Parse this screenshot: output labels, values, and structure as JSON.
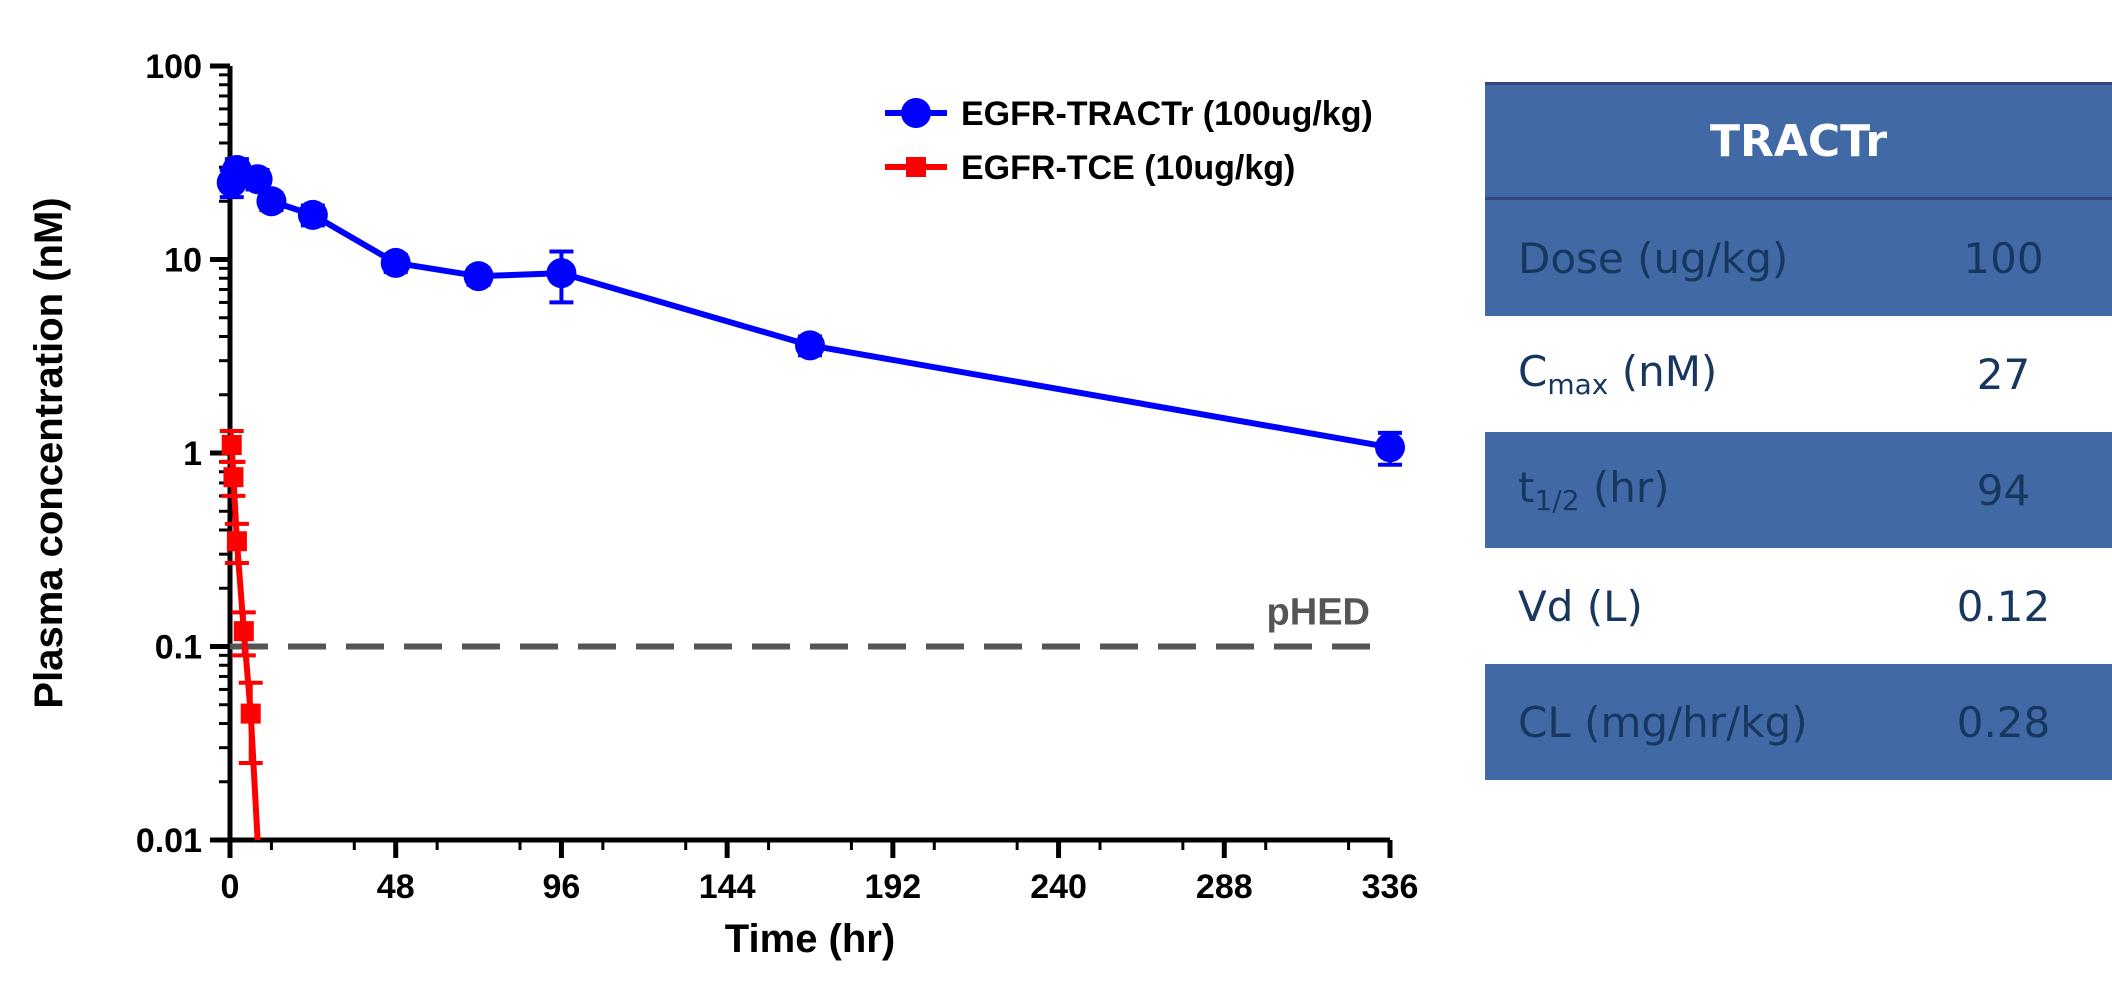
{
  "chart_data": {
    "type": "line",
    "xlabel": "Time (hr)",
    "ylabel": "Plasma concentration (nM)",
    "xlim": [
      0,
      336
    ],
    "ylim": [
      0.01,
      100
    ],
    "yscale": "log",
    "x_ticks": [
      0,
      48,
      96,
      144,
      192,
      240,
      288,
      336
    ],
    "y_ticks": [
      {
        "value": 100,
        "label": "100"
      },
      {
        "value": 10,
        "label": "10"
      },
      {
        "value": 1,
        "label": "1"
      },
      {
        "value": 0.1,
        "label": "0.1"
      },
      {
        "value": 0.01,
        "label": "0.01"
      }
    ],
    "legend_position": "top-right",
    "series": [
      {
        "name": "EGFR-TRACTr (100ug/kg)",
        "color": "#0000ff",
        "marker": "circle",
        "points": [
          {
            "x": 0.5,
            "y": 25,
            "err": 4
          },
          {
            "x": 2,
            "y": 29,
            "err": 4
          },
          {
            "x": 8,
            "y": 26,
            "err": 3
          },
          {
            "x": 12,
            "y": 20,
            "err": 2
          },
          {
            "x": 24,
            "y": 17,
            "err": 2
          },
          {
            "x": 48,
            "y": 9.6,
            "err": 1
          },
          {
            "x": 72,
            "y": 8.2,
            "err": 0.8
          },
          {
            "x": 96,
            "y": 8.5,
            "err": 2.5
          },
          {
            "x": 168,
            "y": 3.6,
            "err": 0.4
          },
          {
            "x": 336,
            "y": 1.07,
            "err": 0.2
          }
        ]
      },
      {
        "name": "EGFR-TCE (10ug/kg)",
        "color": "#ff0000",
        "marker": "square",
        "points": [
          {
            "x": 0.5,
            "y": 1.1,
            "err": 0.2
          },
          {
            "x": 1,
            "y": 0.75,
            "err": 0.15
          },
          {
            "x": 2,
            "y": 0.35,
            "err": 0.08
          },
          {
            "x": 4,
            "y": 0.12,
            "err": 0.03
          },
          {
            "x": 6,
            "y": 0.045,
            "err": 0.02
          },
          {
            "x": 8,
            "y": 0.01,
            "err": 0
          }
        ]
      }
    ],
    "reference_line": {
      "y": 0.1,
      "label": "pHED",
      "style": "dashed",
      "color": "#555555"
    }
  },
  "table": {
    "header": "TRACTr",
    "rows": [
      {
        "label": "Dose (ug/kg)",
        "value": "100"
      },
      {
        "label_main": "C",
        "label_sub": "max",
        "label_rest": " (nM)",
        "value": "27"
      },
      {
        "label_main": "t",
        "label_sub": "1/2",
        "label_rest": " (hr)",
        "value": "94"
      },
      {
        "label": "Vd (L)",
        "value": "0.12"
      },
      {
        "label": "CL (mg/hr/kg)",
        "value": "0.28"
      }
    ]
  }
}
